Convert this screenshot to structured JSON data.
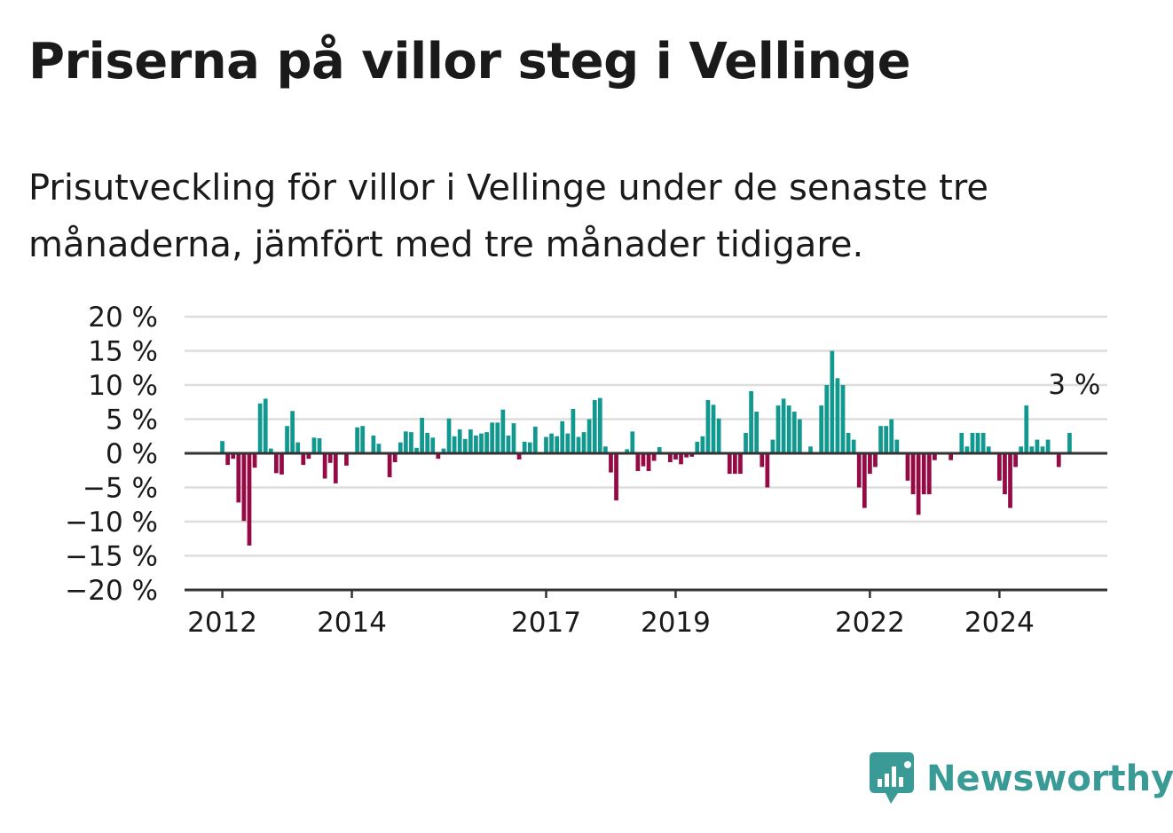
{
  "title": "Priserna på villor steg i Vellinge",
  "subtitle": "Prisutveckling för villor i Vellinge under de senaste tre månaderna, jämfört med tre månader tidigare.",
  "brand": {
    "name": "Newsworthy",
    "color": "#3a9a96",
    "icon": "newsworthy-bar-chart-icon"
  },
  "colors": {
    "positive": "#12998f",
    "negative": "#950a44",
    "grid": "#dddddd",
    "axis": "#333333"
  },
  "chart_data": {
    "type": "bar",
    "title": "Priserna på villor steg i Vellinge",
    "ylim": [
      -20,
      20
    ],
    "y_ticks": [
      20,
      15,
      10,
      5,
      0,
      -5,
      -10,
      -15,
      -20
    ],
    "y_tick_labels": [
      "20 %",
      "15 %",
      "10 %",
      "5 %",
      "0 %",
      "−5 %",
      "−10 %",
      "−15 %",
      "−20 %"
    ],
    "x_tick_labels": [
      "2012",
      "2014",
      "2017",
      "2019",
      "2022",
      "2024"
    ],
    "x_tick_dates": [
      "2012-01",
      "2014-01",
      "2017-01",
      "2019-01",
      "2022-01",
      "2024-01"
    ],
    "x_range": [
      "2011-06",
      "2025-09"
    ],
    "grid": true,
    "annotation": {
      "text": "3 %",
      "value": 3,
      "date": "2024-12"
    },
    "series": [
      {
        "start": "2012-01",
        "frequency": "monthly",
        "values": [
          1.8,
          -1.7,
          -0.8,
          -7.2,
          -9.9,
          -13.5,
          -2.1,
          7.3,
          8.0,
          0.7,
          -2.9,
          -3.1,
          4.0,
          6.2,
          1.6,
          -1.7,
          -0.8,
          2.3,
          2.2,
          -3.7,
          -1.4,
          -4.4,
          0,
          -1.8,
          0,
          3.8,
          4.0,
          0,
          2.6,
          1.4,
          0,
          -3.5,
          -1.3,
          1.6,
          3.2,
          3.1,
          0.8,
          5.2,
          3.0,
          2.3,
          -0.8,
          0.7,
          5.1,
          2.5,
          3.5,
          2.1,
          3.5,
          2.6,
          2.9,
          3.1,
          4.5,
          4.5,
          6.4,
          2.6,
          4.4,
          -0.9,
          1.7,
          1.6,
          3.9,
          0,
          2.4,
          2.9,
          2.5,
          4.7,
          2.9,
          6.5,
          2.4,
          3.1,
          5.0,
          7.8,
          8.1,
          1.0,
          -2.8,
          -6.9,
          0,
          0.6,
          3.2,
          -2.6,
          -1.9,
          -2.6,
          -1.1,
          0.9,
          0,
          -1.3,
          -0.9,
          -1.6,
          -0.6,
          -0.5,
          1.7,
          2.5,
          7.8,
          7.1,
          5.1,
          0,
          -3.0,
          -3.0,
          -3.0,
          3.0,
          9.1,
          6.1,
          -2.0,
          -5.0,
          2.0,
          7.0,
          8.0,
          7.0,
          6.1,
          5.0,
          0,
          1.0,
          0,
          7.0,
          10.0,
          15.0,
          11.0,
          10.0,
          3.0,
          2.0,
          -5.0,
          -8.0,
          -3.0,
          -2.0,
          4.0,
          4.0,
          5.0,
          2.0,
          0,
          -4.0,
          -6.0,
          -9.0,
          -6.0,
          -6.0,
          -1.0,
          0,
          0,
          -1.0,
          0,
          3.0,
          1.0,
          3.0,
          3.0,
          3.0,
          1.0,
          0,
          -4.0,
          -6.0,
          -8.0,
          -2.0,
          1.0,
          7.0,
          1.0,
          2.0,
          1.0,
          2.0,
          0,
          -2.0,
          0,
          3.0
        ]
      }
    ]
  }
}
